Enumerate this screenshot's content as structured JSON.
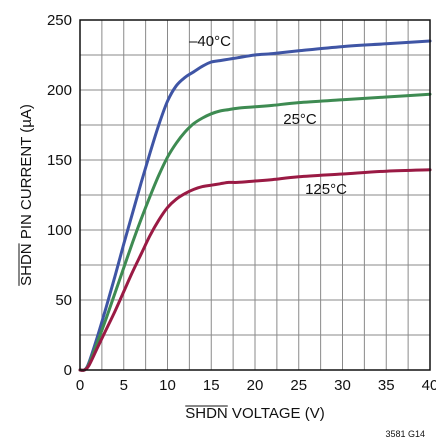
{
  "chart_data": {
    "type": "line",
    "x_ticks": [
      "0",
      "5",
      "10",
      "15",
      "20",
      "25",
      "30",
      "35",
      "40"
    ],
    "y_ticks": [
      "0",
      "50",
      "100",
      "150",
      "200",
      "250"
    ],
    "xlim": [
      0,
      40
    ],
    "ylim": [
      0,
      250
    ],
    "xlabel": {
      "overline": "SHDN",
      "rest": " VOLTAGE (V)"
    },
    "ylabel": {
      "overline": "SHDN",
      "rest": " PIN CURRENT (µA)"
    },
    "grid": true,
    "figure_code": "3581 G14",
    "series": [
      {
        "name": "–40°C",
        "color": "#3f55a5",
        "x": [
          0,
          0.5,
          1,
          2,
          3,
          4,
          5,
          6,
          7,
          8,
          9,
          10,
          11,
          12,
          13,
          14,
          15,
          16,
          17,
          18,
          20,
          22,
          25,
          30,
          35,
          40
        ],
        "y": [
          0,
          0,
          5,
          24,
          45,
          67,
          90,
          112,
          134,
          155,
          175,
          192,
          203,
          209,
          213,
          217,
          220,
          221,
          222,
          223,
          225,
          226,
          228,
          231,
          233,
          235
        ]
      },
      {
        "name": "25°C",
        "color": "#3e8b52",
        "x": [
          0,
          0.5,
          1,
          2,
          3,
          4,
          5,
          6,
          7,
          8,
          9,
          10,
          11,
          12,
          13,
          14,
          15,
          16,
          17,
          18,
          20,
          22,
          25,
          30,
          35,
          40
        ],
        "y": [
          0,
          0,
          4,
          20,
          37,
          55,
          73,
          91,
          108,
          124,
          139,
          152,
          162,
          170,
          176,
          180,
          183,
          185,
          186,
          187,
          188,
          189,
          191,
          193,
          195,
          197
        ]
      },
      {
        "name": "125°C",
        "color": "#9a1a44",
        "x": [
          0,
          0.5,
          1,
          2,
          3,
          4,
          5,
          6,
          7,
          8,
          9,
          10,
          11,
          12,
          13,
          14,
          15,
          16,
          17,
          18,
          20,
          22,
          25,
          30,
          35,
          40
        ],
        "y": [
          0,
          0,
          3,
          16,
          29,
          42,
          56,
          70,
          83,
          96,
          107,
          116,
          122,
          126,
          129,
          131,
          132,
          133,
          134,
          134,
          135,
          136,
          138,
          140,
          142,
          143
        ]
      }
    ],
    "curve_labels": [
      {
        "series": 0,
        "text": "–40°C"
      },
      {
        "series": 1,
        "text": "25°C"
      },
      {
        "series": 2,
        "text": "125°C"
      }
    ]
  }
}
